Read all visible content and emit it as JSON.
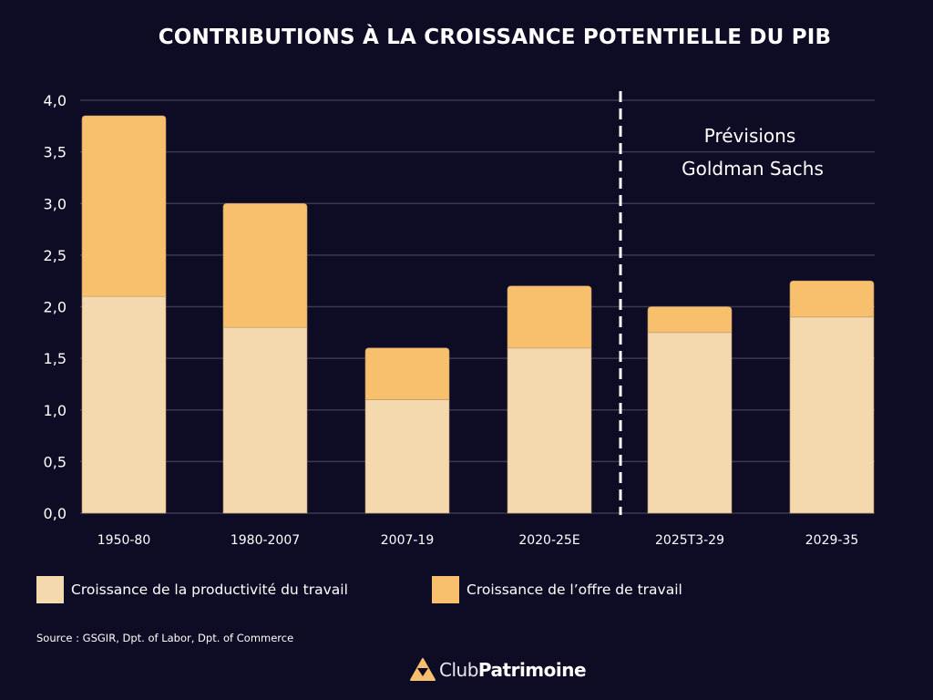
{
  "chart_data": {
    "type": "bar",
    "stacked": true,
    "title": "CONTRIBUTIONS À LA CROISSANCE POTENTIELLE DU PIB",
    "xlabel": "",
    "ylabel": "",
    "ylim": [
      0,
      4
    ],
    "yticks": [
      0,
      0.5,
      1,
      1.5,
      2,
      2.5,
      3,
      3.5,
      4
    ],
    "ytick_labels": [
      "0,0",
      "0,5",
      "1,0",
      "1,5",
      "2,0",
      "2,5",
      "3,0",
      "3,5",
      "4,0"
    ],
    "grid": true,
    "categories": [
      "1950-80",
      "1980-2007",
      "2007-19",
      "2020-25E",
      "2025T3-29",
      "2029-35"
    ],
    "series": [
      {
        "name": "Croissance de la productivité du travail",
        "color": "#f4d9ae",
        "values": [
          2.1,
          1.8,
          1.1,
          1.6,
          1.75,
          1.9
        ]
      },
      {
        "name": "Croissance de l’offre de travail",
        "color": "#f8c06c",
        "values": [
          1.75,
          1.2,
          0.5,
          0.6,
          0.25,
          0.35
        ]
      }
    ],
    "forecast_divider_after_index": 3,
    "annotation": [
      "Prévisions",
      "Goldman Sachs"
    ],
    "legend_position": "bottom"
  },
  "source": "Source : GSGIR, Dpt. of Labor, Dpt. of Commerce",
  "logo": {
    "part1": "Club",
    "part2": "Patrimoine",
    "icon": "triangle-logo-icon"
  },
  "colors": {
    "background": "#0e0c25",
    "grid": "#3a3850",
    "text": "#ffffff"
  }
}
